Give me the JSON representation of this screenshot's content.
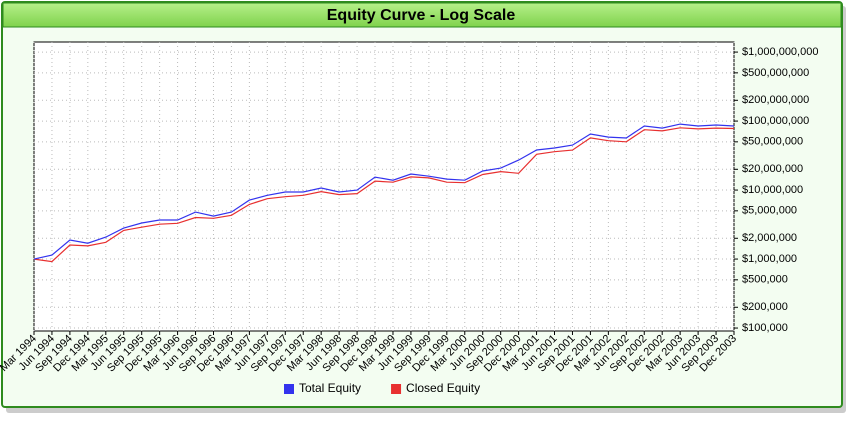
{
  "chart_data": {
    "type": "line",
    "title": "Equity Curve - Log Scale",
    "categories": [
      "Mar 1994",
      "Jun 1994",
      "Sep 1994",
      "Dec 1994",
      "Mar 1995",
      "Jun 1995",
      "Sep 1995",
      "Dec 1995",
      "Mar 1996",
      "Jun 1996",
      "Sep 1996",
      "Dec 1996",
      "Mar 1997",
      "Jun 1997",
      "Sep 1997",
      "Dec 1997",
      "Mar 1998",
      "Jun 1998",
      "Sep 1998",
      "Dec 1998",
      "Mar 1999",
      "Jun 1999",
      "Sep 1999",
      "Dec 1999",
      "Mar 2000",
      "Jun 2000",
      "Sep 2000",
      "Dec 2000",
      "Mar 2001",
      "Jun 2001",
      "Sep 2001",
      "Dec 2001",
      "Mar 2002",
      "Jun 2002",
      "Sep 2002",
      "Dec 2002",
      "Mar 2003",
      "Jun 2003",
      "Sep 2003",
      "Dec 2003"
    ],
    "series": [
      {
        "name": "Total Equity",
        "color": "#3333ee",
        "values": [
          1000000,
          1140000,
          1890000,
          1700000,
          2080000,
          2810000,
          3330000,
          3680000,
          3680000,
          4800000,
          4200000,
          4800000,
          7150000,
          8400000,
          9360000,
          9360000,
          10700000,
          9360000,
          10000000,
          15400000,
          13900000,
          17100000,
          15900000,
          14400000,
          13900000,
          18900000,
          20800000,
          27200000,
          38100000,
          40700000,
          44900000,
          64900000,
          58600000,
          56800000,
          84900000,
          79200000,
          90500000,
          84900000,
          87700000,
          84900000
        ]
      },
      {
        "name": "Closed Equity",
        "color": "#e83030",
        "values": [
          1000000,
          920000,
          1600000,
          1550000,
          1750000,
          2600000,
          2900000,
          3200000,
          3300000,
          4000000,
          3900000,
          4300000,
          6200000,
          7500000,
          8000000,
          8400000,
          9500000,
          8600000,
          8900000,
          13500000,
          13000000,
          15500000,
          15000000,
          13000000,
          12800000,
          16800000,
          18500000,
          17500000,
          33000000,
          36000000,
          38000000,
          57000000,
          52000000,
          50000000,
          75000000,
          72000000,
          80000000,
          77000000,
          79000000,
          78000000
        ]
      }
    ],
    "ylim": [
      90600,
      1400000000
    ],
    "log_scale": true,
    "grid": true,
    "yticks": [
      {
        "value": 100000,
        "label": "$100,000"
      },
      {
        "value": 200000,
        "label": "$200,000"
      },
      {
        "value": 500000,
        "label": "$500,000"
      },
      {
        "value": 1000000,
        "label": "$1,000,000"
      },
      {
        "value": 2000000,
        "label": "$2,000,000"
      },
      {
        "value": 5000000,
        "label": "$5,000,000"
      },
      {
        "value": 10000000,
        "label": "$10,000,000"
      },
      {
        "value": 20000000,
        "label": "$20,000,000"
      },
      {
        "value": 50000000,
        "label": "$50,000,000"
      },
      {
        "value": 100000000,
        "label": "$100,000,000"
      },
      {
        "value": 200000000,
        "label": "$200,000,000"
      },
      {
        "value": 500000000,
        "label": "$500,000,000"
      },
      {
        "value": 1000000000,
        "label": "$1,000,000,000"
      }
    ],
    "legend": "bottom"
  }
}
